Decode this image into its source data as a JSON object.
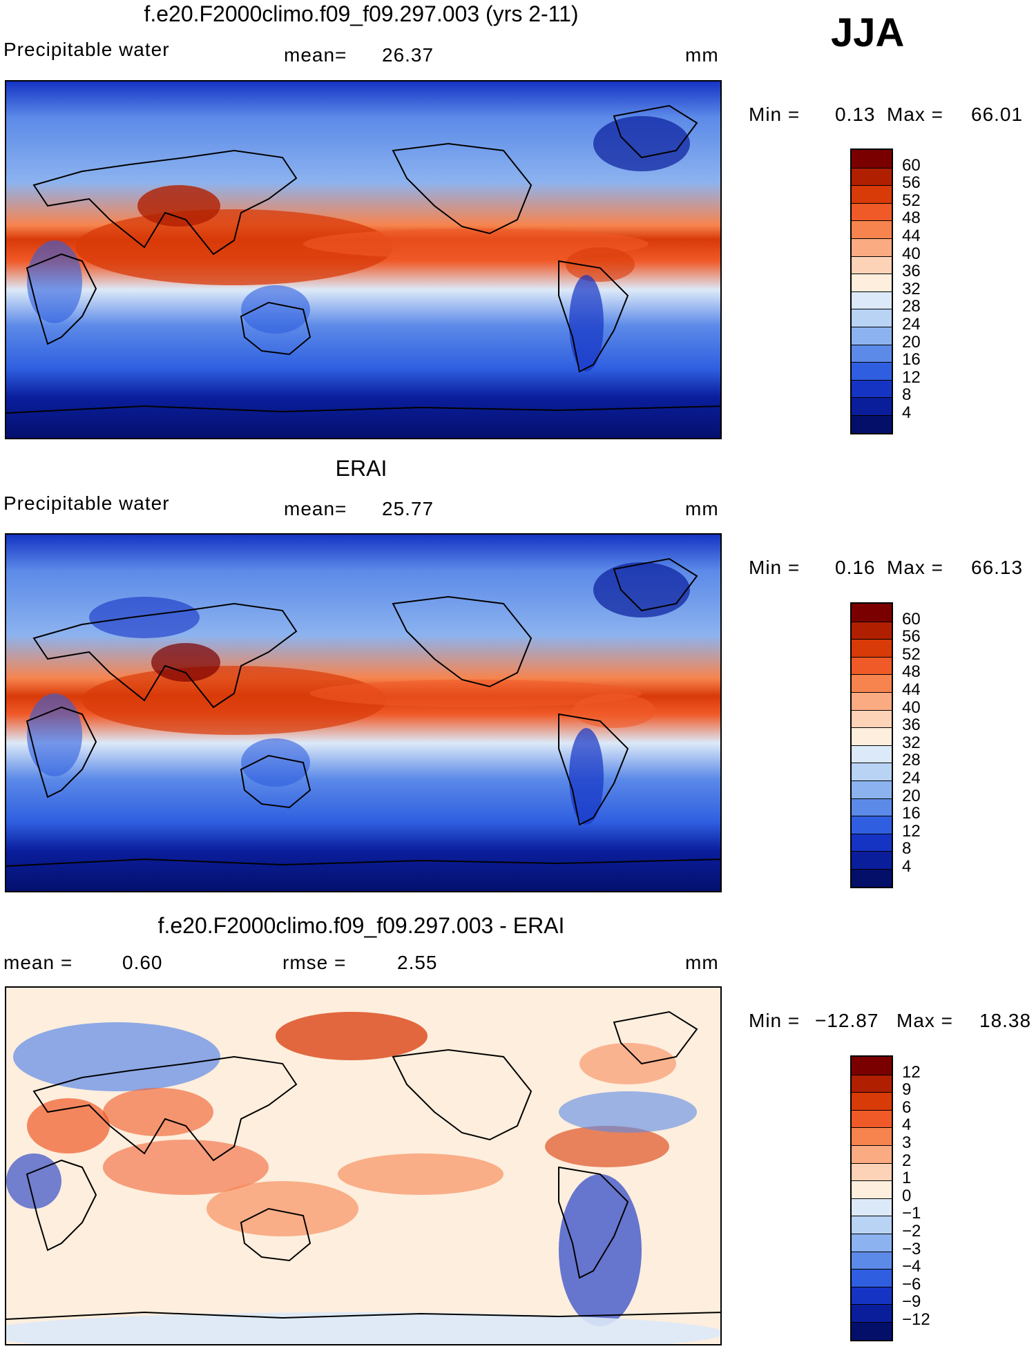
{
  "season": "JJA",
  "panels": [
    {
      "title": "f.e20.F2000climo.f09_f09.297.003 (yrs 2-11)",
      "left_label": "Precipitable water",
      "mid_label": "mean=",
      "mid_value": "26.37",
      "units": "mm",
      "min_label": "Min =",
      "min_value": "0.13",
      "max_label": "Max =",
      "max_value": "66.01",
      "scale": "abs"
    },
    {
      "title": "ERAI",
      "left_label": "Precipitable water",
      "mid_label": "mean=",
      "mid_value": "25.77",
      "units": "mm",
      "min_label": "Min =",
      "min_value": "0.16",
      "max_label": "Max =",
      "max_value": "66.13",
      "scale": "abs"
    },
    {
      "title": "f.e20.F2000climo.f09_f09.297.003 - ERAI",
      "left_label": "mean =",
      "left_value": "0.60",
      "mid_label": "rmse =",
      "mid_value": "2.55",
      "units": "mm",
      "min_label": "Min =",
      "min_value": "−12.87",
      "max_label": "Max =",
      "max_value": "18.38",
      "scale": "diff"
    }
  ],
  "colorbars": {
    "abs": {
      "labels": [
        "60",
        "56",
        "52",
        "48",
        "44",
        "40",
        "36",
        "32",
        "28",
        "24",
        "20",
        "16",
        "12",
        "8",
        "4"
      ],
      "colors": [
        "#7a0000",
        "#b01f00",
        "#d83a08",
        "#f05a28",
        "#f7844e",
        "#fbab82",
        "#fdd3b8",
        "#fdeedd",
        "#dce9f8",
        "#b9d3f5",
        "#8cb3ef",
        "#5c8ae8",
        "#2f5fe0",
        "#1534c4",
        "#0a1e9c",
        "#040f6a"
      ]
    },
    "diff": {
      "labels": [
        "12",
        "9",
        "6",
        "4",
        "3",
        "2",
        "1",
        "0",
        "−1",
        "−2",
        "−3",
        "−4",
        "−6",
        "−9",
        "−12"
      ],
      "colors": [
        "#7a0000",
        "#b01f00",
        "#d83a08",
        "#f05a28",
        "#f7844e",
        "#fbab82",
        "#fdd3b8",
        "#fdeedd",
        "#dce9f8",
        "#b9d3f5",
        "#8cb3ef",
        "#5c8ae8",
        "#2f5fe0",
        "#1534c4",
        "#0a1e9c",
        "#040f6a"
      ]
    }
  }
}
